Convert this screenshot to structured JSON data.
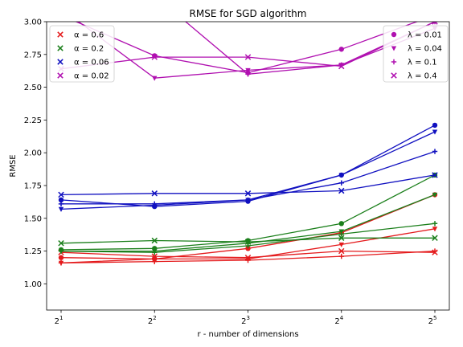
{
  "chart_data": {
    "type": "line",
    "title": "RMSE for SGD algorithm",
    "xlabel": "r - number of dimensions",
    "ylabel": "RMSE",
    "x": [
      2,
      4,
      8,
      16,
      32
    ],
    "x_tick_labels": [
      {
        "base": "2",
        "exp": "1"
      },
      {
        "base": "2",
        "exp": "2"
      },
      {
        "base": "2",
        "exp": "3"
      },
      {
        "base": "2",
        "exp": "4"
      },
      {
        "base": "2",
        "exp": "5"
      }
    ],
    "x_scale": "log2",
    "ylim": [
      0.8,
      3.0
    ],
    "y_ticks": [
      "1.00",
      "1.25",
      "1.50",
      "1.75",
      "2.00",
      "2.25",
      "2.50",
      "2.75",
      "3.00"
    ],
    "colors": {
      "red": "#e41a1c",
      "green": "#1b7f1b",
      "blue": "#1010c0",
      "magenta": "#b010b0"
    },
    "series": [
      {
        "color": "red",
        "marker": "circle",
        "values": [
          1.2,
          1.19,
          1.27,
          1.39,
          1.68
        ]
      },
      {
        "color": "red",
        "marker": "triangle",
        "values": [
          1.16,
          1.19,
          1.19,
          1.3,
          1.42
        ]
      },
      {
        "color": "red",
        "marker": "plus",
        "values": [
          1.16,
          1.17,
          1.18,
          1.21,
          1.25
        ]
      },
      {
        "color": "red",
        "marker": "x",
        "values": [
          1.24,
          1.21,
          1.2,
          1.25,
          1.24
        ]
      },
      {
        "color": "green",
        "marker": "circle",
        "values": [
          1.26,
          1.27,
          1.33,
          1.46,
          1.83
        ]
      },
      {
        "color": "green",
        "marker": "triangle",
        "values": [
          1.25,
          1.25,
          1.31,
          1.4,
          1.68
        ]
      },
      {
        "color": "green",
        "marker": "plus",
        "values": [
          1.25,
          1.24,
          1.29,
          1.38,
          1.46
        ]
      },
      {
        "color": "green",
        "marker": "x",
        "values": [
          1.31,
          1.33,
          1.32,
          1.35,
          1.35
        ]
      },
      {
        "color": "blue",
        "marker": "circle",
        "values": [
          1.64,
          1.59,
          1.63,
          1.83,
          2.21
        ]
      },
      {
        "color": "blue",
        "marker": "triangle",
        "values": [
          1.57,
          1.6,
          1.64,
          1.83,
          2.16
        ]
      },
      {
        "color": "blue",
        "marker": "plus",
        "values": [
          1.61,
          1.61,
          1.64,
          1.77,
          2.01
        ]
      },
      {
        "color": "blue",
        "marker": "x",
        "values": [
          1.68,
          1.69,
          1.69,
          1.71,
          1.83
        ]
      },
      {
        "color": "magenta",
        "marker": "circle",
        "values": [
          3.05,
          2.74,
          2.61,
          2.79,
          3.05
        ]
      },
      {
        "color": "magenta",
        "marker": "triangle",
        "values": [
          3.1,
          2.57,
          2.63,
          2.67,
          2.95
        ]
      },
      {
        "color": "magenta",
        "marker": "plus",
        "values": [
          3.1,
          3.2,
          2.6,
          2.67,
          3.0
        ]
      },
      {
        "color": "magenta",
        "marker": "x",
        "values": [
          2.64,
          2.73,
          2.73,
          2.66,
          3.0
        ]
      }
    ],
    "legends": [
      {
        "position": "top-left",
        "entries": [
          {
            "label": "α = 0.6",
            "color": "red",
            "marker": "x"
          },
          {
            "label": "α = 0.2",
            "color": "green",
            "marker": "x"
          },
          {
            "label": "α = 0.06",
            "color": "blue",
            "marker": "x"
          },
          {
            "label": "α = 0.02",
            "color": "magenta",
            "marker": "x"
          }
        ]
      },
      {
        "position": "top-right",
        "entries": [
          {
            "label": "λ = 0.01",
            "color": "magenta",
            "marker": "circle"
          },
          {
            "label": "λ = 0.04",
            "color": "magenta",
            "marker": "triangle"
          },
          {
            "label": "λ = 0.1",
            "color": "magenta",
            "marker": "plus"
          },
          {
            "label": "λ = 0.4",
            "color": "magenta",
            "marker": "x"
          }
        ]
      }
    ]
  }
}
